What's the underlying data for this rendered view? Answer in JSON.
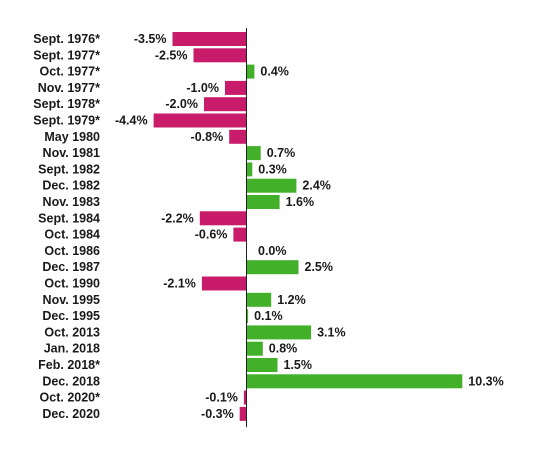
{
  "chart_data": {
    "type": "bar",
    "orientation": "horizontal",
    "categories": [
      "Sept. 1976*",
      "Sept. 1977*",
      "Oct. 1977*",
      "Nov. 1977*",
      "Sept. 1978*",
      "Sept. 1979*",
      "May 1980",
      "Nov. 1981",
      "Sept. 1982",
      "Dec. 1982",
      "Nov. 1983",
      "Sept. 1984",
      "Oct. 1984",
      "Oct. 1986",
      "Dec. 1987",
      "Oct. 1990",
      "Nov. 1995",
      "Dec. 1995",
      "Oct. 2013",
      "Jan. 2018",
      "Feb. 2018*",
      "Dec. 2018",
      "Oct. 2020*",
      "Dec. 2020"
    ],
    "values": [
      -3.5,
      -2.5,
      0.4,
      -1.0,
      -2.0,
      -4.4,
      -0.8,
      0.7,
      0.3,
      2.4,
      1.6,
      -2.2,
      -0.6,
      0.0,
      2.5,
      -2.1,
      1.2,
      0.1,
      3.1,
      0.8,
      1.5,
      10.3,
      -0.1,
      -0.3
    ],
    "data_labels": [
      "-3.5%",
      "-2.5%",
      "0.4%",
      "-1.0%",
      "-2.0%",
      "-4.4%",
      "-0.8%",
      "0.7%",
      "0.3%",
      "2.4%",
      "1.6%",
      "-2.2%",
      "-0.6%",
      "0.0%",
      "2.5%",
      "-2.1%",
      "1.2%",
      "0.1%",
      "3.1%",
      "0.8%",
      "1.5%",
      "10.3%",
      "-0.1%",
      "-0.3%"
    ],
    "xlim": [
      -5.5,
      12.5
    ],
    "colors": {
      "negative": "#c81c6a",
      "positive": "#43b02a"
    },
    "title": "",
    "xlabel": "",
    "ylabel": ""
  }
}
